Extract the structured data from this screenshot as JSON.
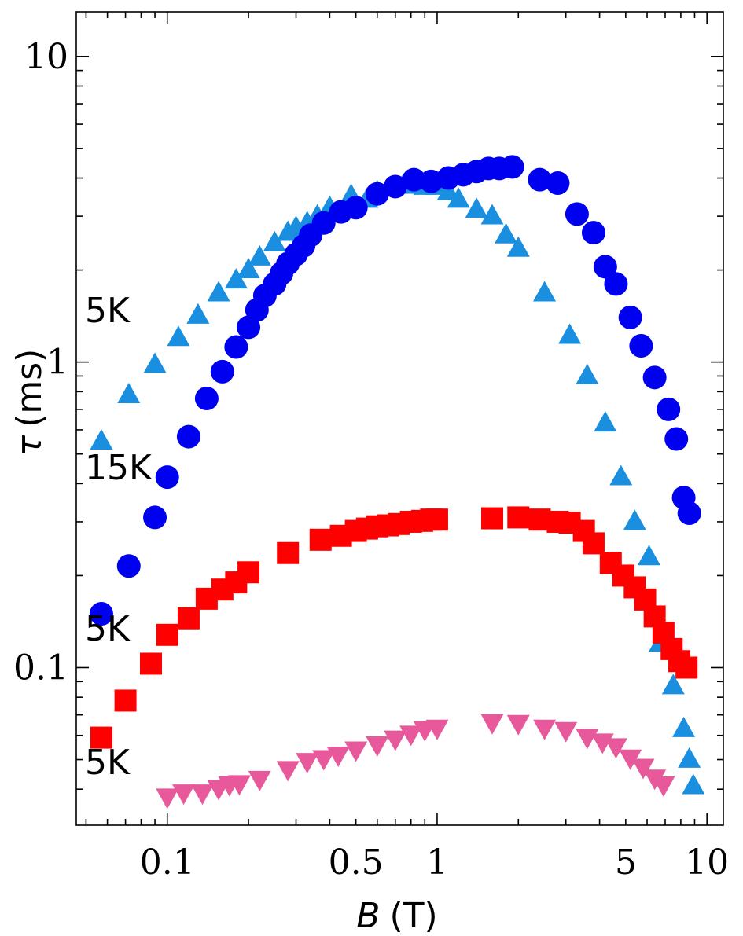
{
  "chart_data": {
    "type": "scatter",
    "xlabel": {
      "symbol": "B",
      "unit": "(T)"
    },
    "ylabel": {
      "symbol": "τ",
      "unit": "(ms)"
    },
    "x_scale": "log",
    "y_scale": "log",
    "xlim": [
      0.046,
      11.5
    ],
    "ylim": [
      0.0305,
      14
    ],
    "x_ticks": [
      {
        "value": 0.1,
        "label": "0.1"
      },
      {
        "value": 0.5,
        "label": "0.5"
      },
      {
        "value": 1,
        "label": "1"
      },
      {
        "value": 5,
        "label": "5"
      },
      {
        "value": 10,
        "label": "10"
      }
    ],
    "y_ticks": [
      {
        "value": 0.1,
        "label": "0.1"
      },
      {
        "value": 1,
        "label": "1"
      },
      {
        "value": 10,
        "label": "10"
      }
    ],
    "annotations": [
      "5K",
      "15K",
      "5K",
      "5K"
    ],
    "series": [
      {
        "name": "triangle-up",
        "marker": "triangle-up",
        "color": "#1a8fe0",
        "x": [
          0.057,
          0.072,
          0.09,
          0.11,
          0.13,
          0.155,
          0.18,
          0.2,
          0.22,
          0.25,
          0.28,
          0.3,
          0.33,
          0.36,
          0.4,
          0.48,
          0.55,
          0.6,
          0.68,
          0.75,
          0.82,
          0.9,
          1.0,
          1.1,
          1.2,
          1.4,
          1.6,
          1.8,
          2.0,
          2.5,
          3.1,
          3.6,
          4.2,
          4.8,
          5.4,
          6.1,
          6.7,
          7.5,
          8.2,
          8.6,
          8.9
        ],
        "y": [
          0.55,
          0.78,
          0.98,
          1.2,
          1.42,
          1.68,
          1.85,
          2.0,
          2.2,
          2.45,
          2.65,
          2.75,
          2.85,
          3.0,
          3.2,
          3.5,
          3.4,
          3.6,
          3.72,
          3.78,
          3.8,
          3.75,
          3.75,
          3.6,
          3.4,
          3.15,
          3.0,
          2.6,
          2.35,
          1.68,
          1.22,
          0.9,
          0.63,
          0.42,
          0.3,
          0.23,
          0.12,
          0.087,
          0.063,
          0.05,
          0.041
        ]
      },
      {
        "name": "circle",
        "marker": "circle",
        "color": "#0000f0",
        "x": [
          0.057,
          0.072,
          0.09,
          0.1,
          0.12,
          0.14,
          0.16,
          0.18,
          0.2,
          0.215,
          0.23,
          0.25,
          0.265,
          0.28,
          0.3,
          0.32,
          0.34,
          0.38,
          0.44,
          0.5,
          0.6,
          0.7,
          0.82,
          0.95,
          1.1,
          1.25,
          1.4,
          1.55,
          1.7,
          1.9,
          2.4,
          2.8,
          3.3,
          3.8,
          4.2,
          4.6,
          5.2,
          5.7,
          6.4,
          7.2,
          7.7,
          8.2,
          8.6
        ],
        "y": [
          0.15,
          0.215,
          0.31,
          0.42,
          0.57,
          0.76,
          0.93,
          1.12,
          1.3,
          1.48,
          1.65,
          1.8,
          1.95,
          2.1,
          2.25,
          2.4,
          2.6,
          2.85,
          3.1,
          3.2,
          3.55,
          3.75,
          3.95,
          3.9,
          4.0,
          4.1,
          4.2,
          4.3,
          4.3,
          4.35,
          3.95,
          3.85,
          3.05,
          2.65,
          2.05,
          1.8,
          1.4,
          1.13,
          0.89,
          0.7,
          0.56,
          0.36,
          0.32
        ]
      },
      {
        "name": "square",
        "marker": "square",
        "color": "#ff0000",
        "x": [
          0.057,
          0.07,
          0.087,
          0.1,
          0.12,
          0.14,
          0.16,
          0.18,
          0.2,
          0.28,
          0.37,
          0.44,
          0.5,
          0.55,
          0.6,
          0.66,
          0.72,
          0.8,
          0.88,
          0.95,
          1.0,
          1.6,
          2.0,
          2.4,
          2.8,
          3.1,
          3.5,
          3.8,
          4.4,
          4.9,
          5.4,
          5.9,
          6.4,
          6.9,
          7.4,
          7.9,
          8.4
        ],
        "y": [
          0.059,
          0.078,
          0.103,
          0.128,
          0.145,
          0.168,
          0.18,
          0.19,
          0.205,
          0.237,
          0.262,
          0.27,
          0.28,
          0.285,
          0.29,
          0.292,
          0.295,
          0.3,
          0.302,
          0.305,
          0.305,
          0.308,
          0.31,
          0.305,
          0.3,
          0.298,
          0.28,
          0.255,
          0.22,
          0.2,
          0.183,
          0.167,
          0.147,
          0.13,
          0.115,
          0.105,
          0.1
        ]
      },
      {
        "name": "triangle-down",
        "marker": "triangle-down",
        "color": "#e8599c",
        "x": [
          0.1,
          0.115,
          0.135,
          0.155,
          0.17,
          0.185,
          0.22,
          0.28,
          0.33,
          0.38,
          0.43,
          0.5,
          0.6,
          0.7,
          0.8,
          0.9,
          1.0,
          1.6,
          2.0,
          2.5,
          3.0,
          3.6,
          4.1,
          4.6,
          5.2,
          5.8,
          6.4,
          6.9
        ],
        "y": [
          0.0378,
          0.039,
          0.039,
          0.0403,
          0.0415,
          0.0418,
          0.0432,
          0.0465,
          0.0494,
          0.0505,
          0.0518,
          0.0539,
          0.056,
          0.0585,
          0.0607,
          0.0628,
          0.0635,
          0.0662,
          0.0658,
          0.0635,
          0.0624,
          0.0593,
          0.0572,
          0.0552,
          0.0507,
          0.0473,
          0.0436,
          0.0414
        ]
      }
    ]
  }
}
